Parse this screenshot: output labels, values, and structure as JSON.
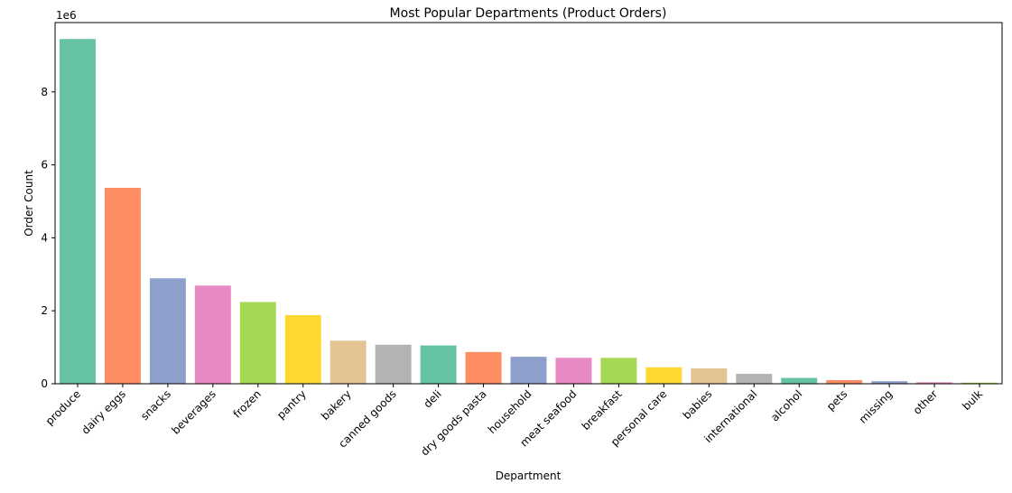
{
  "chart_data": {
    "type": "bar",
    "title": "Most Popular Departments (Product Orders)",
    "xlabel": "Department",
    "ylabel": "Order Count",
    "y_offset_label": "1e6",
    "y_scale": 1000000,
    "ylim": [
      0,
      9.9
    ],
    "yticks": [
      0,
      2,
      4,
      6,
      8
    ],
    "categories": [
      "produce",
      "dairy eggs",
      "snacks",
      "beverages",
      "frozen",
      "pantry",
      "bakery",
      "canned goods",
      "deli",
      "dry goods pasta",
      "household",
      "meat seafood",
      "breakfast",
      "personal care",
      "babies",
      "international",
      "alcohol",
      "pets",
      "missing",
      "other",
      "bulk"
    ],
    "values": [
      9.45,
      5.37,
      2.89,
      2.69,
      2.24,
      1.88,
      1.18,
      1.07,
      1.05,
      0.87,
      0.74,
      0.71,
      0.71,
      0.45,
      0.42,
      0.27,
      0.16,
      0.1,
      0.07,
      0.04,
      0.03
    ],
    "colors": [
      "#66c2a5",
      "#fc8d62",
      "#8da0cb",
      "#e78ac3",
      "#a6d854",
      "#ffd92f",
      "#e5c494",
      "#b3b3b3",
      "#66c2a5",
      "#fc8d62",
      "#8da0cb",
      "#e78ac3",
      "#a6d854",
      "#ffd92f",
      "#e5c494",
      "#b3b3b3",
      "#66c2a5",
      "#fc8d62",
      "#8da0cb",
      "#e78ac3",
      "#a6d854"
    ]
  }
}
